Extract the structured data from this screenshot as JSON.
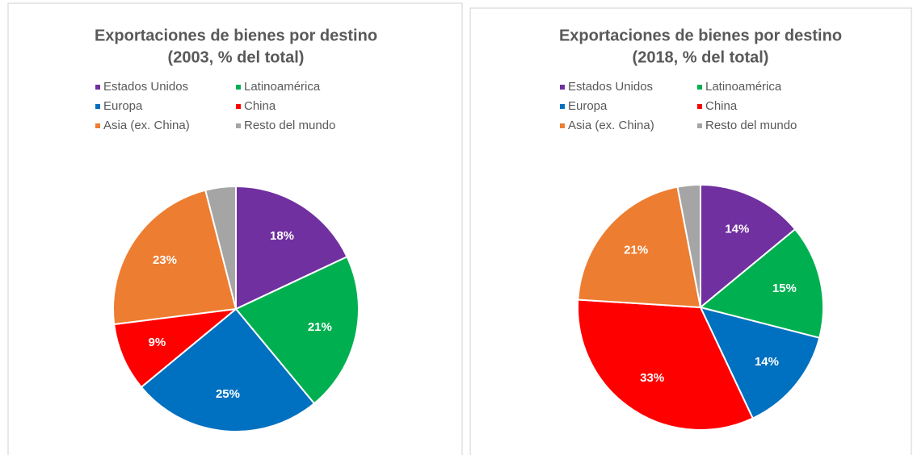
{
  "chart_data": [
    {
      "type": "pie",
      "title": [
        "Exportaciones de bienes por destino",
        "(2003, % del total)"
      ],
      "categories": [
        "Estados Unidos",
        "Latinoamérica",
        "Europa",
        "China",
        "Asia (ex. China)",
        "Resto del mundo"
      ],
      "values": [
        18,
        21,
        25,
        9,
        23,
        4
      ],
      "value_labels": [
        "18%",
        "21%",
        "25%",
        "9%",
        "23%",
        null
      ],
      "colors": [
        "#7030a0",
        "#00b050",
        "#0070c0",
        "#ff0000",
        "#ed7d31",
        "#a5a5a5"
      ],
      "legend": "top"
    },
    {
      "type": "pie",
      "title": [
        "Exportaciones de bienes por destino",
        "(2018, % del total)"
      ],
      "categories": [
        "Estados Unidos",
        "Latinoamérica",
        "Europa",
        "China",
        "Asia (ex. China)",
        "Resto del mundo"
      ],
      "values": [
        14,
        15,
        14,
        33,
        21,
        3
      ],
      "value_labels": [
        "14%",
        "15%",
        "14%",
        "33%",
        "21%",
        null
      ],
      "colors": [
        "#7030a0",
        "#00b050",
        "#0070c0",
        "#ff0000",
        "#ed7d31",
        "#a5a5a5"
      ],
      "legend": "top"
    }
  ]
}
